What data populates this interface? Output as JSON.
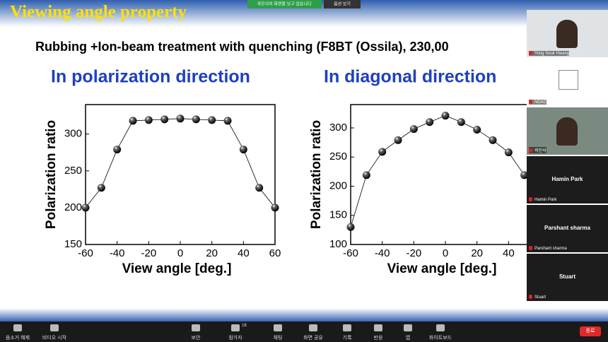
{
  "slide": {
    "title": "Viewing angle property",
    "subtitle": "Rubbing +Ion-beam treatment with quenching (F8BT (Ossila), 230,00",
    "headings": [
      "In polarization direction",
      "In diagonal direction"
    ]
  },
  "chart_data": [
    {
      "type": "line",
      "xlabel": "View angle [deg.]",
      "ylabel": "Polarization ratio",
      "x": [
        -60,
        -50,
        -40,
        -30,
        -20,
        -10,
        0,
        10,
        20,
        30,
        40,
        50,
        60
      ],
      "values": [
        200,
        227,
        279,
        318,
        319,
        320,
        321,
        320,
        319,
        318,
        279,
        227,
        200
      ],
      "xlim": [
        -60,
        60
      ],
      "ylim": [
        150,
        340
      ],
      "xticks": [
        -60,
        -40,
        -20,
        0,
        20,
        40,
        60
      ],
      "yticks": [
        150,
        200,
        250,
        300
      ],
      "color": "#000000"
    },
    {
      "type": "line",
      "xlabel": "View angle [deg.]",
      "ylabel": "Polarization ratio",
      "x": [
        -60,
        -50,
        -40,
        -30,
        -20,
        -10,
        0,
        10,
        20,
        30,
        40,
        50
      ],
      "values": [
        130,
        219,
        259,
        279,
        298,
        310,
        321,
        310,
        297,
        279,
        258,
        219
      ],
      "xlim": [
        -60,
        60
      ],
      "ylim": [
        100,
        340
      ],
      "xticks": [
        -60,
        -40,
        -20,
        0,
        20,
        40
      ],
      "yticks": [
        100,
        150,
        200,
        250,
        300
      ],
      "color": "#000000"
    }
  ],
  "share_banner": {
    "text": "곽진석의 화면을 보고 있습니다",
    "options": "옵션 보기"
  },
  "participants": [
    {
      "name": "Yong Seok Hwang",
      "video": true
    },
    {
      "name": "NDAC",
      "video": true
    },
    {
      "name": "곽진석",
      "video": true
    },
    {
      "name": "Hamin Park",
      "video": false
    },
    {
      "name": "Parshant sharma",
      "video": false
    },
    {
      "name": "Stuart",
      "video": false
    }
  ],
  "toolbar": {
    "left": [
      "음소거 해제",
      "비디오 시작"
    ],
    "center": [
      "보안",
      "참가자",
      "채팅",
      "화면 공유",
      "기록",
      "반응",
      "앱",
      "화이트보드"
    ],
    "participant_count": 18,
    "end": "종료"
  }
}
